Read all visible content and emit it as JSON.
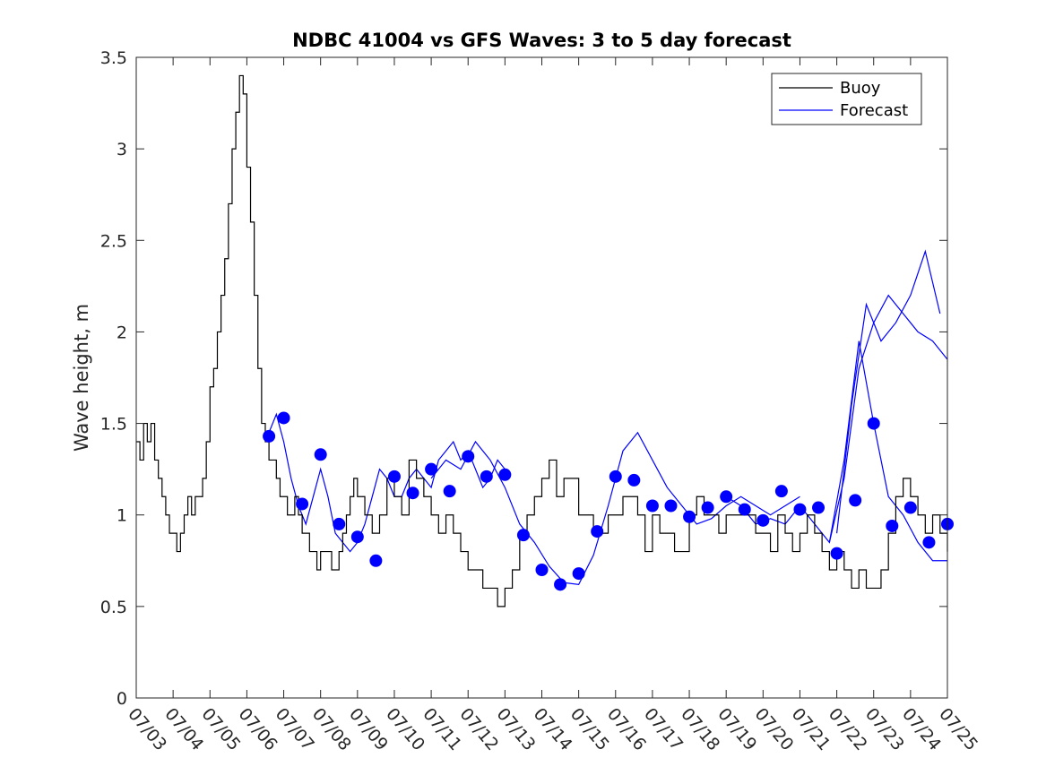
{
  "chart_data": {
    "type": "line",
    "title": "NDBC 41004 vs GFS Waves: 3 to 5 day forecast",
    "xlabel": "",
    "ylabel": "Wave height, m",
    "xlim": [
      "07/03",
      "07/25"
    ],
    "ylim": [
      0,
      3.5
    ],
    "yticks": [
      "0",
      "0.5",
      "1",
      "1.5",
      "2",
      "2.5",
      "3",
      "3.5"
    ],
    "xticks": [
      "07/03",
      "07/04",
      "07/05",
      "07/06",
      "07/07",
      "07/08",
      "07/09",
      "07/10",
      "07/11",
      "07/12",
      "07/13",
      "07/14",
      "07/15",
      "07/16",
      "07/17",
      "07/18",
      "07/19",
      "07/20",
      "07/21",
      "07/22",
      "07/23",
      "07/24",
      "07/25"
    ],
    "legend": {
      "position": "top-right",
      "entries": [
        {
          "label": "Buoy",
          "color": "#000000"
        },
        {
          "label": "Forecast",
          "color": "#0000ff"
        }
      ]
    },
    "grid": false,
    "series": [
      {
        "name": "Buoy",
        "color": "#000000",
        "x": [
          0.0,
          0.1,
          0.2,
          0.3,
          0.4,
          0.5,
          0.6,
          0.7,
          0.8,
          0.9,
          1.0,
          1.1,
          1.2,
          1.3,
          1.4,
          1.5,
          1.6,
          1.7,
          1.8,
          1.9,
          2.0,
          2.1,
          2.2,
          2.3,
          2.4,
          2.5,
          2.6,
          2.7,
          2.8,
          2.9,
          3.0,
          3.1,
          3.2,
          3.3,
          3.4,
          3.5,
          3.6,
          3.7,
          3.8,
          3.9,
          4.0,
          4.1,
          4.2,
          4.3,
          4.4,
          4.5,
          4.6,
          4.7,
          4.8,
          4.9,
          5.0,
          5.1,
          5.2,
          5.3,
          5.4,
          5.5,
          5.6,
          5.7,
          5.8,
          5.9,
          6.0,
          6.2,
          6.4,
          6.6,
          6.8,
          7.0,
          7.2,
          7.4,
          7.6,
          7.8,
          8.0,
          8.2,
          8.4,
          8.6,
          8.8,
          9.0,
          9.2,
          9.4,
          9.6,
          9.8,
          10.0,
          10.2,
          10.4,
          10.6,
          10.8,
          11.0,
          11.2,
          11.4,
          11.6,
          11.8,
          12.0,
          12.2,
          12.4,
          12.6,
          12.8,
          13.0,
          13.2,
          13.4,
          13.6,
          13.8,
          14.0,
          14.2,
          14.4,
          14.6,
          14.8,
          15.0,
          15.2,
          15.4,
          15.6,
          15.8,
          16.0,
          16.2,
          16.4,
          16.6,
          16.8,
          17.0,
          17.2,
          17.4,
          17.6,
          17.8,
          18.0,
          18.2,
          18.4,
          18.6,
          18.8,
          19.0,
          19.2,
          19.4,
          19.6,
          19.8,
          20.0,
          20.2,
          20.4,
          20.6,
          20.8,
          21.0,
          21.2,
          21.4,
          21.6,
          21.8,
          22.0
        ],
        "y": [
          1.4,
          1.3,
          1.5,
          1.4,
          1.5,
          1.3,
          1.2,
          1.1,
          1.0,
          0.9,
          0.9,
          0.8,
          0.9,
          1.0,
          1.1,
          1.0,
          1.1,
          1.1,
          1.2,
          1.4,
          1.7,
          1.8,
          2.0,
          2.2,
          2.4,
          2.7,
          3.0,
          3.2,
          3.4,
          3.3,
          2.9,
          2.6,
          2.2,
          1.8,
          1.5,
          1.4,
          1.3,
          1.3,
          1.2,
          1.1,
          1.1,
          1.0,
          1.0,
          1.1,
          1.0,
          0.9,
          0.9,
          0.8,
          0.8,
          0.7,
          0.8,
          0.8,
          0.8,
          0.7,
          0.7,
          0.8,
          0.9,
          1.0,
          1.1,
          1.2,
          1.1,
          1.0,
          0.9,
          1.0,
          1.2,
          1.1,
          1.0,
          1.3,
          1.2,
          1.1,
          1.0,
          0.9,
          1.0,
          0.9,
          0.8,
          0.7,
          0.7,
          0.6,
          0.6,
          0.5,
          0.6,
          0.7,
          0.9,
          1.0,
          1.1,
          1.2,
          1.3,
          1.1,
          1.2,
          1.2,
          1.0,
          1.0,
          0.9,
          0.9,
          1.0,
          1.0,
          1.1,
          1.1,
          1.0,
          0.8,
          1.0,
          0.9,
          0.9,
          0.8,
          0.8,
          1.0,
          1.1,
          1.0,
          1.0,
          0.9,
          1.0,
          1.0,
          1.0,
          1.0,
          0.9,
          0.9,
          0.8,
          1.0,
          0.9,
          0.8,
          0.9,
          1.0,
          0.9,
          0.8,
          0.7,
          0.8,
          0.7,
          0.6,
          0.7,
          0.6,
          0.6,
          0.7,
          0.9,
          1.1,
          1.2,
          1.1,
          1.0,
          0.9,
          1.0,
          0.9,
          0.8
        ]
      },
      {
        "name": "Forecast",
        "color": "#0000ff",
        "x": [
          3.6,
          4.0,
          4.5,
          5.0,
          5.5,
          6.0,
          6.5,
          7.0,
          7.5,
          8.0,
          8.5,
          9.0,
          9.5,
          10.0,
          10.5,
          11.0,
          11.5,
          12.0,
          12.5,
          13.0,
          13.5,
          14.0,
          14.5,
          15.0,
          15.5,
          16.0,
          16.5,
          17.0,
          17.5,
          18.0,
          18.5,
          19.0,
          19.5,
          20.0,
          20.5,
          21.0,
          21.5,
          22.0
        ],
        "y": [
          1.43,
          1.53,
          1.06,
          1.33,
          0.95,
          0.88,
          0.75,
          1.21,
          1.12,
          1.25,
          1.13,
          1.32,
          1.21,
          1.22,
          0.89,
          0.7,
          0.62,
          0.68,
          0.91,
          1.21,
          1.19,
          1.05,
          1.05,
          0.99,
          1.04,
          1.1,
          1.03,
          0.97,
          1.13,
          1.03,
          1.04,
          0.79,
          1.08,
          1.5,
          0.94,
          1.04,
          0.85,
          0.95
        ]
      }
    ],
    "forecast_traces": [
      {
        "x": [
          3.6,
          3.8,
          4.0,
          4.2,
          4.4,
          4.6,
          4.8,
          5.0,
          5.2,
          5.4,
          5.6,
          5.8,
          6.0,
          6.2,
          6.4,
          6.6,
          6.8,
          7.0,
          7.2,
          7.4,
          7.6,
          7.8,
          8.0,
          8.2,
          8.4,
          8.6,
          8.8,
          9.0,
          9.2,
          9.4,
          9.6,
          9.8,
          10.0
        ],
        "y": [
          1.45,
          1.55,
          1.4,
          1.2,
          1.05,
          0.95,
          1.1,
          1.25,
          1.1,
          0.9,
          0.85,
          0.8,
          0.85,
          0.95,
          1.1,
          1.25,
          1.2,
          1.1,
          1.1,
          1.2,
          1.25,
          1.2,
          1.15,
          1.3,
          1.35,
          1.4,
          1.3,
          1.35,
          1.25,
          1.15,
          1.2,
          1.3,
          1.25
        ]
      },
      {
        "x": [
          8.0,
          8.4,
          8.8,
          9.2,
          9.6,
          10.0,
          10.4,
          10.8,
          11.2,
          11.6,
          12.0,
          12.4,
          12.8,
          13.2,
          13.6,
          14.0,
          14.4,
          14.8,
          15.2,
          15.6,
          16.0,
          16.4,
          16.8,
          17.2,
          17.6,
          18.0
        ],
        "y": [
          1.2,
          1.3,
          1.25,
          1.4,
          1.3,
          1.15,
          0.95,
          0.85,
          0.72,
          0.63,
          0.62,
          0.78,
          1.05,
          1.35,
          1.45,
          1.3,
          1.15,
          1.05,
          0.95,
          0.98,
          1.05,
          1.1,
          1.05,
          1.0,
          1.05,
          1.1
        ]
      },
      {
        "x": [
          16.0,
          16.4,
          16.8,
          17.2,
          17.6,
          18.0,
          18.4,
          18.8,
          19.2,
          19.6,
          20.0,
          20.4,
          20.8,
          21.2,
          21.6,
          22.0
        ],
        "y": [
          1.1,
          1.05,
          0.95,
          0.98,
          0.95,
          1.05,
          0.95,
          0.85,
          1.2,
          1.8,
          2.05,
          2.2,
          2.1,
          2.0,
          1.95,
          1.85
        ]
      },
      {
        "x": [
          18.8,
          19.2,
          19.6,
          20.0,
          20.4,
          20.8,
          21.2,
          21.6,
          22.0
        ],
        "y": [
          0.85,
          1.3,
          1.95,
          1.5,
          1.1,
          1.0,
          0.85,
          0.75,
          0.75
        ]
      },
      {
        "x": [
          19.0,
          19.4,
          19.8,
          20.2,
          20.6,
          21.0,
          21.4,
          21.8
        ],
        "y": [
          0.9,
          1.6,
          2.15,
          1.95,
          2.05,
          2.2,
          2.44,
          2.1
        ]
      }
    ]
  }
}
